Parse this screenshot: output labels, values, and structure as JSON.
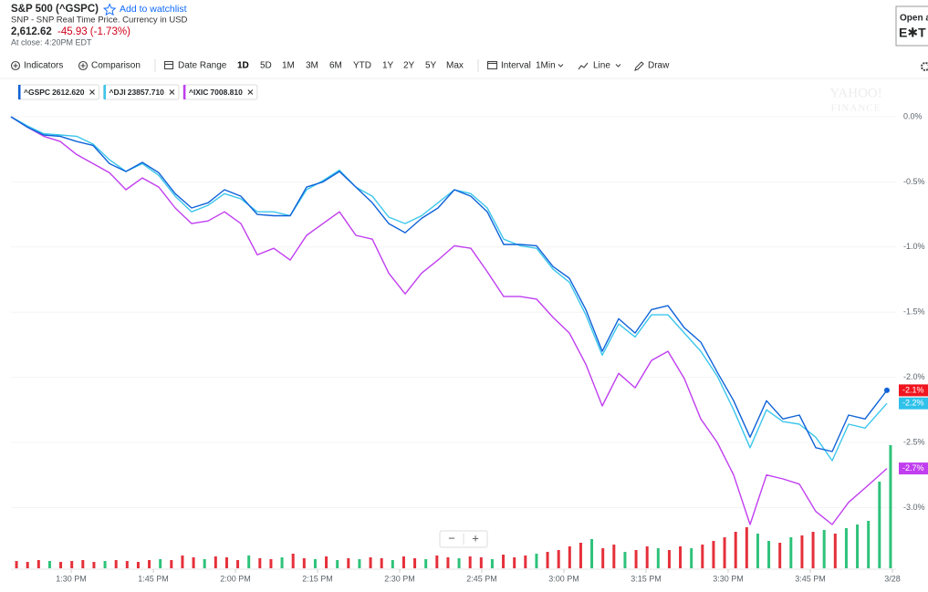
{
  "header": {
    "title": "S&P 500 (^GSPC)",
    "watchlist": "Add to watchlist",
    "subtitle": "SNP - SNP Real Time Price. Currency in USD",
    "price": "2,612.62",
    "change": "-45.93 (-1.73%)",
    "close_time": "At close: 4:20PM EDT"
  },
  "ad": {
    "line1": "Open a",
    "line2": "E✱T"
  },
  "toolbar": {
    "indicators": "Indicators",
    "comparison": "Comparison",
    "date_range": "Date Range",
    "ranges": [
      "1D",
      "5D",
      "1M",
      "3M",
      "6M",
      "YTD",
      "1Y",
      "2Y",
      "5Y",
      "Max"
    ],
    "active_range": 0,
    "interval_label": "Interval",
    "interval": "1Min",
    "chart_type": "Line",
    "draw": "Draw"
  },
  "watermark": [
    "YAHOO!",
    "FINANCE"
  ],
  "zoom": {
    "out": "−",
    "in": "+"
  },
  "chart_data": {
    "type": "line",
    "x": [
      79,
      82,
      85,
      88,
      91,
      94,
      97,
      100,
      103,
      106,
      109,
      112,
      115,
      118,
      121,
      124,
      127,
      130,
      133,
      136,
      139,
      142,
      145,
      148,
      151,
      154,
      157,
      160,
      163,
      166,
      169,
      172,
      175,
      178,
      181,
      184,
      187,
      190,
      193,
      196,
      199,
      202,
      205,
      208,
      211,
      214,
      217,
      220,
      223,
      226,
      229,
      232,
      235,
      239
    ],
    "xlim": [
      79,
      240.67
    ],
    "xticks": [
      {
        "value": 90,
        "label": "1:30 PM"
      },
      {
        "value": 105,
        "label": "1:45 PM"
      },
      {
        "value": 120,
        "label": "2:00 PM"
      },
      {
        "value": 135,
        "label": "2:15 PM"
      },
      {
        "value": 150,
        "label": "2:30 PM"
      },
      {
        "value": 165,
        "label": "2:45 PM"
      },
      {
        "value": 180,
        "label": "3:00 PM"
      },
      {
        "value": 195,
        "label": "3:15 PM"
      },
      {
        "value": 210,
        "label": "3:30 PM"
      },
      {
        "value": 225,
        "label": "3:45 PM"
      },
      {
        "value": 240,
        "label": "3/28"
      }
    ],
    "ylim": [
      -3.48,
      0.28
    ],
    "yticks": [
      {
        "value": 0,
        "label": "0.0%"
      },
      {
        "value": -0.5,
        "label": "-0.5%"
      },
      {
        "value": -1,
        "label": "-1.0%"
      },
      {
        "value": -1.5,
        "label": "-1.5%"
      },
      {
        "value": -2,
        "label": "-2.0%"
      },
      {
        "value": -2.5,
        "label": "-2.5%"
      },
      {
        "value": -3,
        "label": "-3.0%"
      }
    ],
    "grid": true,
    "series": [
      {
        "name": "^GSPC",
        "quote": "2612.620",
        "color": "#0f62d8",
        "tag_color": "#f0151f",
        "last_label": "-2.1%",
        "end_dot": true,
        "values": [
          0,
          -0.08,
          -0.14,
          -0.15,
          -0.19,
          -0.22,
          -0.36,
          -0.42,
          -0.35,
          -0.43,
          -0.59,
          -0.7,
          -0.66,
          -0.56,
          -0.61,
          -0.75,
          -0.76,
          -0.76,
          -0.54,
          -0.5,
          -0.42,
          -0.54,
          -0.66,
          -0.82,
          -0.89,
          -0.78,
          -0.7,
          -0.56,
          -0.61,
          -0.73,
          -0.98,
          -0.98,
          -0.99,
          -1.15,
          -1.24,
          -1.48,
          -1.8,
          -1.55,
          -1.66,
          -1.48,
          -1.45,
          -1.62,
          -1.73,
          -1.96,
          -2.18,
          -2.46,
          -2.18,
          -2.32,
          -2.29,
          -2.54,
          -2.57,
          -2.29,
          -2.32,
          -2.1
        ]
      },
      {
        "name": "^DJI",
        "quote": "23857.710",
        "color": "#3cc6ec",
        "tag_color": "#2fc1ea",
        "last_label": "-2.2%",
        "end_dot": false,
        "values": [
          0,
          -0.07,
          -0.13,
          -0.14,
          -0.15,
          -0.21,
          -0.33,
          -0.42,
          -0.36,
          -0.45,
          -0.61,
          -0.73,
          -0.68,
          -0.59,
          -0.63,
          -0.73,
          -0.73,
          -0.76,
          -0.56,
          -0.49,
          -0.41,
          -0.54,
          -0.61,
          -0.77,
          -0.82,
          -0.76,
          -0.66,
          -0.56,
          -0.59,
          -0.7,
          -0.94,
          -0.99,
          -1.01,
          -1.17,
          -1.27,
          -1.52,
          -1.83,
          -1.59,
          -1.69,
          -1.52,
          -1.52,
          -1.66,
          -1.8,
          -1.99,
          -2.25,
          -2.54,
          -2.25,
          -2.34,
          -2.36,
          -2.46,
          -2.64,
          -2.36,
          -2.39,
          -2.2
        ]
      },
      {
        "name": "^IXIC",
        "quote": "7008.810",
        "color": "#c13ef0",
        "tag_color": "#c13ef0",
        "last_label": "-2.7%",
        "end_dot": false,
        "values": [
          0,
          -0.08,
          -0.15,
          -0.19,
          -0.29,
          -0.36,
          -0.43,
          -0.56,
          -0.47,
          -0.54,
          -0.7,
          -0.82,
          -0.8,
          -0.73,
          -0.82,
          -1.06,
          -1.01,
          -1.1,
          -0.91,
          -0.82,
          -0.73,
          -0.91,
          -0.94,
          -1.2,
          -1.36,
          -1.2,
          -1.1,
          -0.99,
          -1.01,
          -1.19,
          -1.38,
          -1.38,
          -1.4,
          -1.54,
          -1.66,
          -1.9,
          -2.22,
          -1.97,
          -2.08,
          -1.87,
          -1.8,
          -2.01,
          -2.32,
          -2.5,
          -2.75,
          -3.13,
          -2.75,
          -2.78,
          -2.82,
          -3.03,
          -3.13,
          -2.96,
          -2.85,
          -2.7
        ]
      }
    ],
    "volume": {
      "up_color": "#2ec27a",
      "down_color": "#e5303b",
      "values": [
        8,
        7,
        9,
        8,
        7,
        8,
        9,
        7,
        8,
        9,
        8,
        7,
        9,
        10,
        9,
        14,
        12,
        10,
        13,
        12,
        9,
        14,
        11,
        10,
        12,
        16,
        11,
        10,
        13,
        9,
        11,
        10,
        12,
        11,
        9,
        13,
        11,
        10,
        14,
        12,
        11,
        13,
        12,
        10,
        15,
        12,
        14,
        16,
        18,
        20,
        24,
        28,
        32,
        22,
        26,
        18,
        20,
        24,
        22,
        20,
        24,
        22,
        26,
        30,
        34,
        40,
        45,
        38,
        30,
        28,
        34,
        36,
        40,
        42,
        38,
        44,
        48,
        52,
        95,
        135
      ],
      "up": [
        false,
        false,
        false,
        true,
        false,
        false,
        false,
        false,
        true,
        false,
        false,
        false,
        false,
        true,
        false,
        false,
        false,
        true,
        false,
        false,
        false,
        true,
        false,
        false,
        true,
        false,
        false,
        true,
        false,
        true,
        false,
        true,
        false,
        false,
        true,
        false,
        false,
        true,
        false,
        false,
        true,
        false,
        false,
        true,
        false,
        false,
        false,
        true,
        false,
        false,
        false,
        false,
        true,
        false,
        false,
        true,
        false,
        false,
        true,
        false,
        false,
        true,
        false,
        false,
        false,
        false,
        false,
        true,
        true,
        false,
        true,
        false,
        false,
        true,
        false,
        true,
        true,
        true,
        true,
        true
      ]
    }
  }
}
